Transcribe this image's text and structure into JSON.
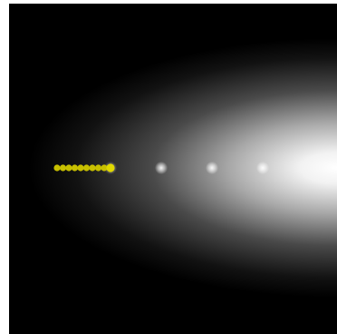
{
  "scene": {
    "background_color": "#000000",
    "glow_color": "#ffffff",
    "glow_source": "right"
  },
  "agent": {
    "color": "#c8c000",
    "head_color": "#e0d800",
    "segment_count": 9
  },
  "pellets": {
    "count": 4,
    "color": "#ffffff"
  }
}
